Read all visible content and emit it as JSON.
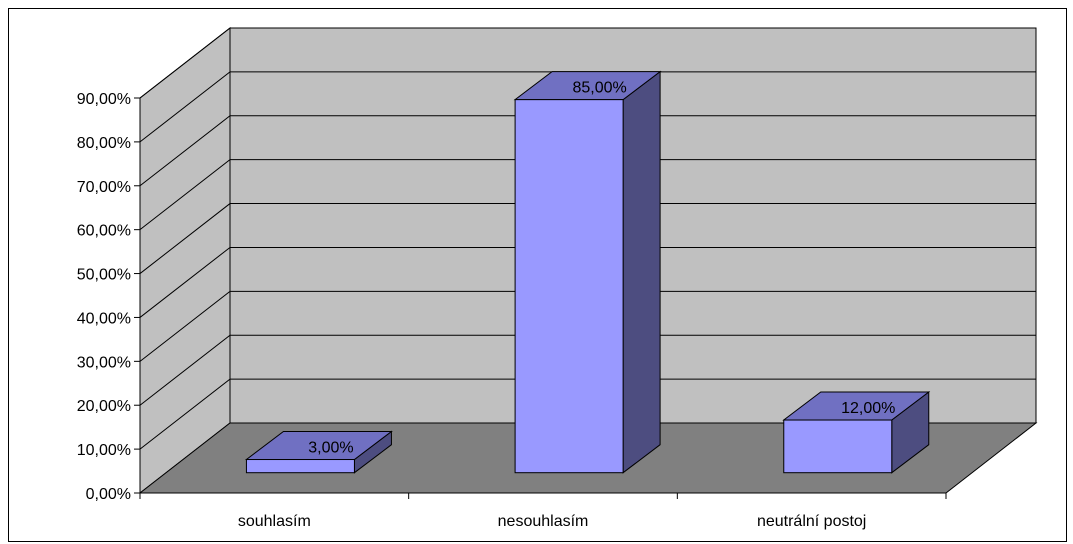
{
  "chart_data": {
    "type": "bar",
    "style": "3d",
    "categories": [
      "souhlasím",
      "nesouhlasím",
      "neutrální postoj"
    ],
    "values": [
      0.03,
      0.85,
      0.12
    ],
    "data_labels": [
      "3,00%",
      "85,00%",
      "12,00%"
    ],
    "title": "",
    "xlabel": "",
    "ylabel": "",
    "ylim": [
      0,
      0.9
    ],
    "yticks": [
      "0,00%",
      "10,00%",
      "20,00%",
      "30,00%",
      "40,00%",
      "50,00%",
      "60,00%",
      "70,00%",
      "80,00%",
      "90,00%"
    ],
    "grid": true,
    "legend": "none"
  },
  "colors": {
    "wall": "#c0c0c0",
    "floor": "#808080",
    "bar_front": "#9999ff",
    "bar_top": "#7070c2",
    "bar_side": "#4d4d80",
    "gridline": "#000000",
    "frame": "#000000"
  }
}
